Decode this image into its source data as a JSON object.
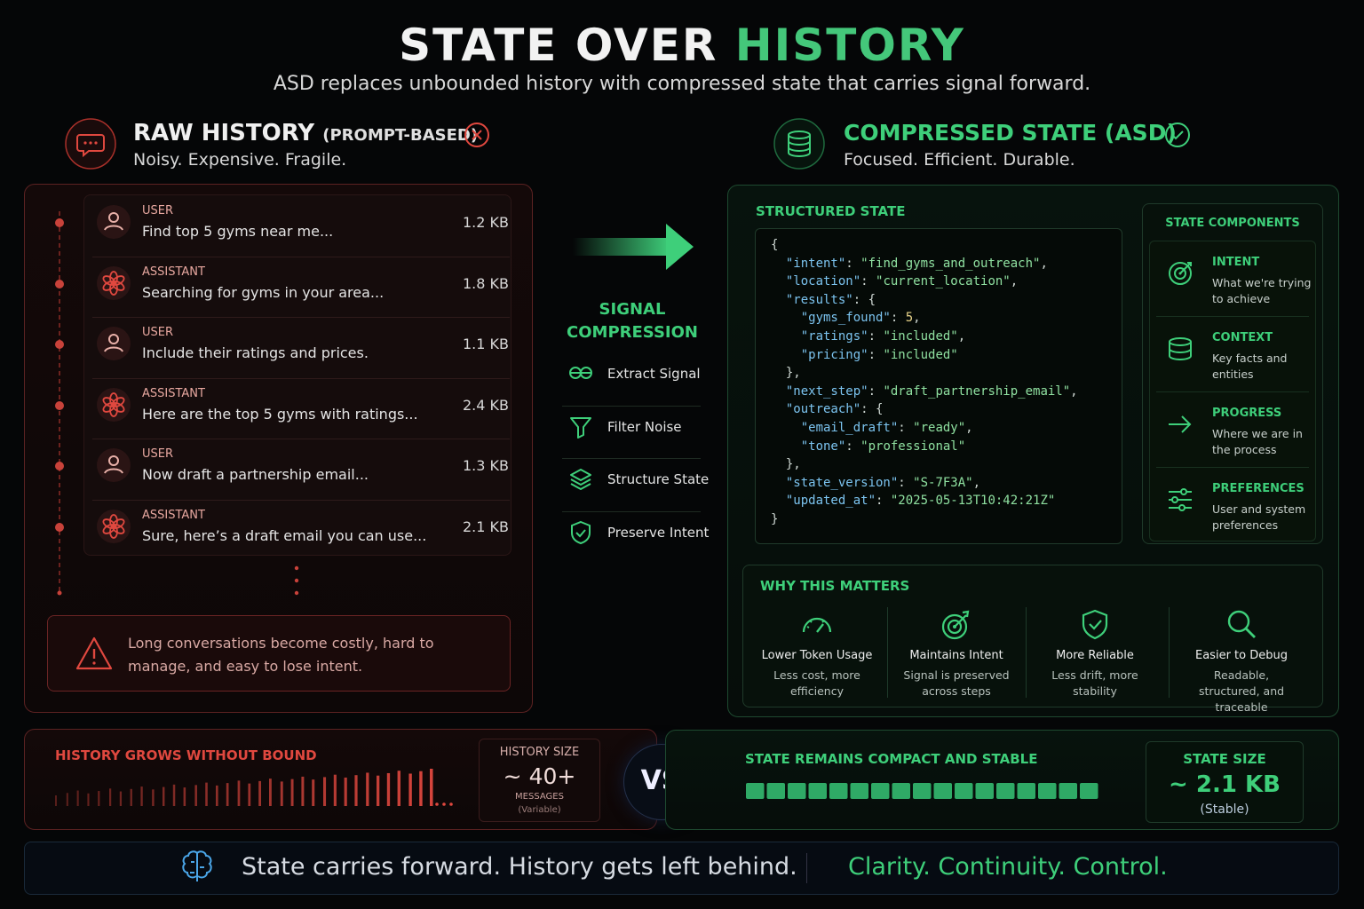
{
  "header": {
    "title_a": "STATE OVER",
    "title_b": "HISTORY",
    "subtitle": "ASD replaces unbounded history with compressed state that carries signal forward."
  },
  "raw": {
    "title": "RAW HISTORY",
    "tag": "(PROMPT-BASED)",
    "subtitle": "Noisy. Expensive. Fragile.",
    "messages": [
      {
        "role": "USER",
        "text": "Find top 5 gyms near me...",
        "size": "1.2 KB"
      },
      {
        "role": "ASSISTANT",
        "text": "Searching for gyms in your area...",
        "size": "1.8 KB"
      },
      {
        "role": "USER",
        "text": "Include their ratings and prices.",
        "size": "1.1 KB"
      },
      {
        "role": "ASSISTANT",
        "text": "Here are the top 5 gyms with ratings...",
        "size": "2.4 KB"
      },
      {
        "role": "USER",
        "text": "Now draft a partnership email...",
        "size": "1.3 KB"
      },
      {
        "role": "ASSISTANT",
        "text": "Sure, here’s a draft email you can use...",
        "size": "2.1 KB"
      }
    ],
    "warning": "Long conversations become costly, hard to manage, and easy to lose intent."
  },
  "compression": {
    "title": "SIGNAL COMPRESSION",
    "steps": [
      "Extract Signal",
      "Filter Noise",
      "Structure State",
      "Preserve Intent"
    ]
  },
  "state": {
    "title": "COMPRESSED STATE (ASD)",
    "subtitle": "Focused. Efficient. Durable.",
    "structured_title": "STRUCTURED STATE",
    "code": [
      "{",
      "  \"intent\": \"find_gyms_and_outreach\",",
      "  \"location\": \"current_location\",",
      "  \"results\": {",
      "    \"gyms_found\": 5,",
      "    \"ratings\": \"included\",",
      "    \"pricing\": \"included\"",
      "  },",
      "  \"next_step\": \"draft_partnership_email\",",
      "  \"outreach\": {",
      "    \"email_draft\": \"ready\",",
      "    \"tone\": \"professional\"",
      "  },",
      "  \"state_version\": \"S-7F3A\",",
      "  \"updated_at\": \"2025-05-13T10:42:21Z\"",
      "}"
    ],
    "components_title": "STATE COMPONENTS",
    "components": [
      {
        "name": "INTENT",
        "desc": "What we're trying to achieve"
      },
      {
        "name": "CONTEXT",
        "desc": "Key facts and entities"
      },
      {
        "name": "PROGRESS",
        "desc": "Where we are in the process"
      },
      {
        "name": "PREFERENCES",
        "desc": "User and system preferences"
      }
    ],
    "why_title": "WHY THIS MATTERS",
    "why": [
      {
        "title": "Lower Token Usage",
        "desc": "Less cost, more efficiency"
      },
      {
        "title": "Maintains Intent",
        "desc": "Signal is preserved across steps"
      },
      {
        "title": "More Reliable",
        "desc": "Less drift, more stability"
      },
      {
        "title": "Easier to Debug",
        "desc": "Readable, structured, and traceable"
      }
    ]
  },
  "bottom": {
    "history_label": "HISTORY GROWS WITHOUT BOUND",
    "history_size_title": "HISTORY SIZE",
    "history_size": "~ 40+",
    "history_unit": "MESSAGES",
    "history_note": "(Variable)",
    "vs": "VS",
    "state_label": "STATE REMAINS COMPACT AND STABLE",
    "state_size_title": "STATE SIZE",
    "state_size": "~ 2.1 KB",
    "state_note": "(Stable)"
  },
  "footer": {
    "left": "State carries forward. History gets left behind.",
    "right": "Clarity. Continuity. Control."
  }
}
